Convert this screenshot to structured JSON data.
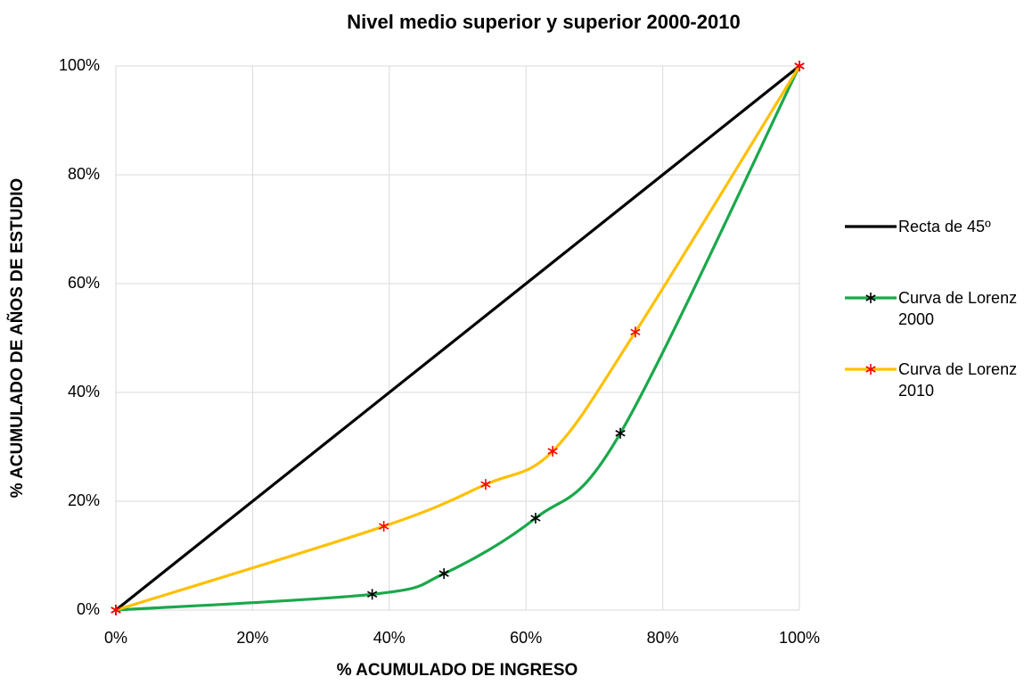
{
  "chart_data": {
    "type": "line",
    "title": "Nivel medio superior y superior 2000-2010",
    "x_label": "% ACUMULADO DE INGRESO",
    "y_label": "% ACUMULADO DE AÑOS DE ESTUDIO",
    "xlim": [
      0,
      100
    ],
    "ylim": [
      0,
      100
    ],
    "xticks": [
      {
        "value": 0,
        "label": "0%"
      },
      {
        "value": 20,
        "label": "20%"
      },
      {
        "value": 40,
        "label": "40%"
      },
      {
        "value": 60,
        "label": "60%"
      },
      {
        "value": 80,
        "label": "80%"
      },
      {
        "value": 100,
        "label": "100%"
      }
    ],
    "yticks": [
      {
        "value": 0,
        "label": "0%"
      },
      {
        "value": 20,
        "label": "20%"
      },
      {
        "value": 40,
        "label": "40%"
      },
      {
        "value": 60,
        "label": "60%"
      },
      {
        "value": 80,
        "label": "80%"
      },
      {
        "value": 100,
        "label": "100%"
      }
    ],
    "grid": true,
    "legend": "right",
    "series": [
      {
        "name": "Recta de 45º",
        "color": "#000000",
        "smooth": false,
        "x": [
          0,
          100
        ],
        "values": [
          0,
          100
        ]
      },
      {
        "name": "Curva de Lorenz 2000",
        "color": "#1aa84b",
        "marker_color": "#000000",
        "smooth": true,
        "x": [
          0,
          37.5,
          48,
          61.4,
          73.8,
          100
        ],
        "values": [
          0,
          2.9,
          6.7,
          16.9,
          32.5,
          100
        ]
      },
      {
        "name": "Curva de Lorenz 2010",
        "color": "#ffc000",
        "marker_color": "#ff0000",
        "smooth": true,
        "x": [
          0,
          39.2,
          54.1,
          63.9,
          76,
          100
        ],
        "values": [
          0,
          15.4,
          23.1,
          29.2,
          51.1,
          100
        ]
      }
    ]
  }
}
